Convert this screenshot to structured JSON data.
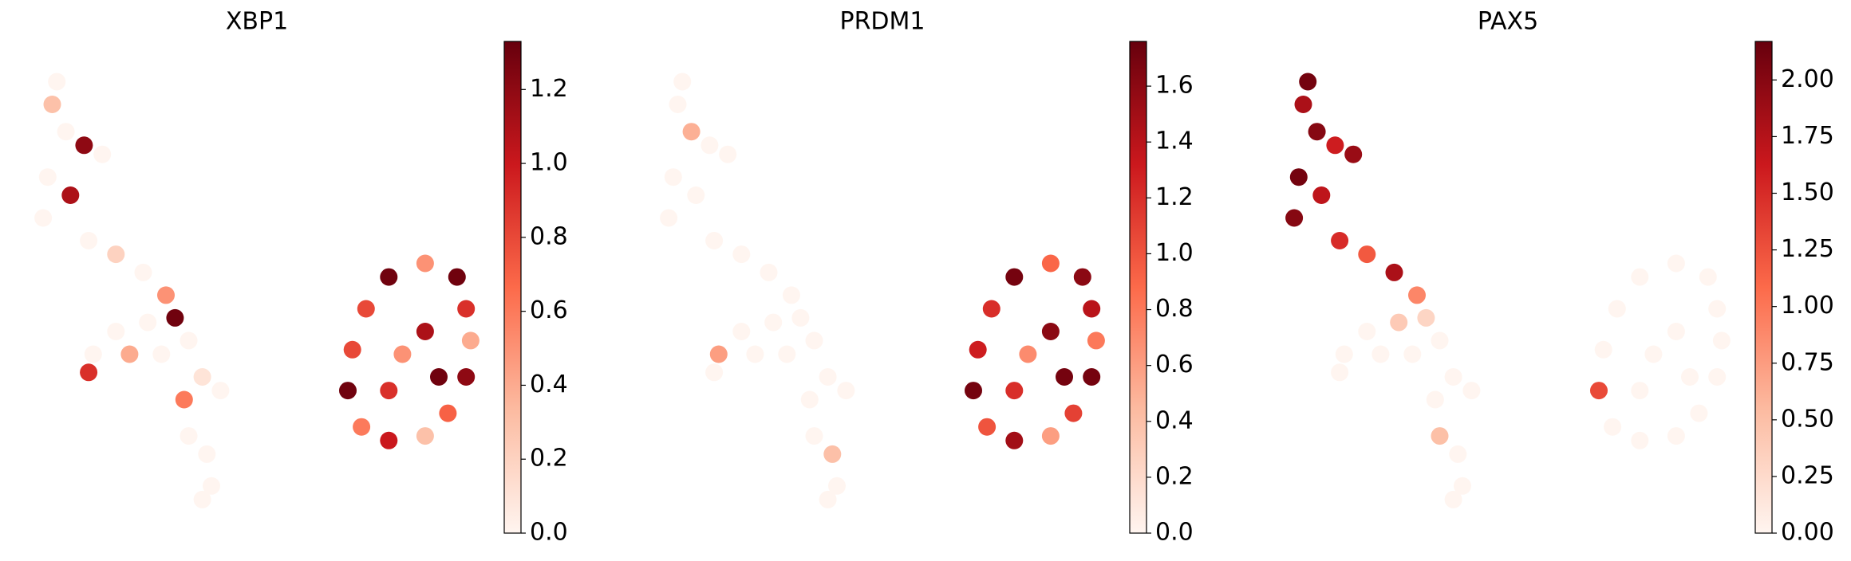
{
  "chart_data": [
    {
      "type": "scatter",
      "title": "XBP1",
      "x": [
        0.6,
        0.5,
        0.8,
        1.2,
        1.6,
        0.4,
        0.3,
        0.9,
        1.3,
        1.9,
        2.5,
        3.0,
        3.2,
        2.6,
        1.9,
        1.4,
        1.3,
        2.2,
        2.9,
        3.5,
        3.8,
        4.2,
        3.4,
        3.5,
        3.9,
        4.0,
        3.8,
        7.4,
        7.9,
        8.7,
        9.4,
        9.6,
        9.7,
        9.6,
        9.2,
        8.7,
        7.9,
        7.3,
        7.0,
        7.1,
        8.2,
        8.7,
        7.9,
        9.0
      ],
      "y": [
        9.5,
        9.0,
        8.4,
        8.1,
        7.9,
        7.4,
        6.5,
        7.0,
        6.0,
        5.7,
        5.3,
        4.8,
        4.3,
        4.2,
        4.0,
        3.5,
        3.1,
        3.5,
        3.5,
        3.8,
        3.0,
        2.7,
        2.5,
        1.7,
        1.3,
        0.6,
        0.3,
        4.5,
        5.2,
        5.5,
        5.2,
        4.5,
        3.8,
        3.0,
        2.2,
        1.7,
        1.6,
        1.9,
        2.7,
        3.6,
        3.5,
        4.0,
        2.7,
        3.0
      ],
      "values": [
        0,
        0.3,
        0,
        1.2,
        0,
        0,
        0,
        1.1,
        0,
        0.2,
        0,
        0.5,
        1.3,
        0,
        0,
        0,
        0.9,
        0.4,
        0,
        0,
        0.1,
        0,
        0.6,
        0,
        0,
        0,
        0,
        0.8,
        1.3,
        0.5,
        1.3,
        0.9,
        0.4,
        1.2,
        0.7,
        0.3,
        1.0,
        0.6,
        1.3,
        0.8,
        0.5,
        1.1,
        0.9,
        1.3
      ],
      "xlim": [
        0,
        10
      ],
      "ylim": [
        0,
        10
      ],
      "clim": [
        0,
        1.33
      ],
      "cticks": [
        {
          "value": 0,
          "label": "0.0"
        },
        {
          "value": 0.2,
          "label": "0.2"
        },
        {
          "value": 0.4,
          "label": "0.4"
        },
        {
          "value": 0.6,
          "label": "0.6"
        },
        {
          "value": 0.8,
          "label": "0.8"
        },
        {
          "value": 1,
          "label": "1.0"
        },
        {
          "value": 1.2,
          "label": "1.2"
        }
      ],
      "cmap": [
        "#fff5f0",
        "#fcbba1",
        "#fc6a4a",
        "#cb181d",
        "#67000d"
      ]
    },
    {
      "type": "scatter",
      "title": "PRDM1",
      "x": [
        0.6,
        0.5,
        0.8,
        1.2,
        1.6,
        0.4,
        0.3,
        0.9,
        1.3,
        1.9,
        2.5,
        3.0,
        3.2,
        2.6,
        1.9,
        1.4,
        1.3,
        2.2,
        2.9,
        3.5,
        3.8,
        4.2,
        3.4,
        3.5,
        3.9,
        4.0,
        3.8,
        7.4,
        7.9,
        8.7,
        9.4,
        9.6,
        9.7,
        9.6,
        9.2,
        8.7,
        7.9,
        7.3,
        7.0,
        7.1,
        8.2,
        8.7,
        7.9,
        9.0
      ],
      "y": [
        9.5,
        9.0,
        8.4,
        8.1,
        7.9,
        7.4,
        6.5,
        7.0,
        6.0,
        5.7,
        5.3,
        4.8,
        4.3,
        4.2,
        4.0,
        3.5,
        3.1,
        3.5,
        3.5,
        3.8,
        3.0,
        2.7,
        2.5,
        1.7,
        1.3,
        0.6,
        0.3,
        4.5,
        5.2,
        5.5,
        5.2,
        4.5,
        3.8,
        3.0,
        2.2,
        1.7,
        1.6,
        1.9,
        2.7,
        3.6,
        3.5,
        4.0,
        2.7,
        3.0
      ],
      "values": [
        0,
        0,
        0.5,
        0,
        0,
        0,
        0,
        0,
        0,
        0,
        0,
        0,
        0,
        0,
        0,
        0.6,
        0,
        0,
        0,
        0,
        0,
        0,
        0,
        0,
        0.4,
        0,
        0,
        1.2,
        1.7,
        0.9,
        1.6,
        1.4,
        0.8,
        1.7,
        1.1,
        0.6,
        1.5,
        1.0,
        1.7,
        1.3,
        0.7,
        1.6,
        1.2,
        1.7
      ],
      "xlim": [
        0,
        10
      ],
      "ylim": [
        0,
        10
      ],
      "clim": [
        0,
        1.76
      ],
      "cticks": [
        {
          "value": 0,
          "label": "0.0"
        },
        {
          "value": 0.2,
          "label": "0.2"
        },
        {
          "value": 0.4,
          "label": "0.4"
        },
        {
          "value": 0.6,
          "label": "0.6"
        },
        {
          "value": 0.8,
          "label": "0.8"
        },
        {
          "value": 1,
          "label": "1.0"
        },
        {
          "value": 1.2,
          "label": "1.2"
        },
        {
          "value": 1.4,
          "label": "1.4"
        },
        {
          "value": 1.6,
          "label": "1.6"
        }
      ],
      "cmap": [
        "#fff5f0",
        "#fcbba1",
        "#fc6a4a",
        "#cb181d",
        "#67000d"
      ]
    },
    {
      "type": "scatter",
      "title": "PAX5",
      "x": [
        0.6,
        0.5,
        0.8,
        1.2,
        1.6,
        0.4,
        0.3,
        0.9,
        1.3,
        1.9,
        2.5,
        3.0,
        3.2,
        2.6,
        1.9,
        1.4,
        1.3,
        2.2,
        2.9,
        3.5,
        3.8,
        4.2,
        3.4,
        3.5,
        3.9,
        4.0,
        3.8,
        7.4,
        7.9,
        8.7,
        9.4,
        9.6,
        9.7,
        9.6,
        9.2,
        8.7,
        7.9,
        7.3,
        7.0,
        7.1,
        8.2,
        8.7,
        7.9,
        9.0
      ],
      "y": [
        9.5,
        9.0,
        8.4,
        8.1,
        7.9,
        7.4,
        6.5,
        7.0,
        6.0,
        5.7,
        5.3,
        4.8,
        4.3,
        4.2,
        4.0,
        3.5,
        3.1,
        3.5,
        3.5,
        3.8,
        3.0,
        2.7,
        2.5,
        1.7,
        1.3,
        0.6,
        0.3,
        4.5,
        5.2,
        5.5,
        5.2,
        4.5,
        3.8,
        3.0,
        2.2,
        1.7,
        1.6,
        1.9,
        2.7,
        3.6,
        3.5,
        4.0,
        2.7,
        3.0
      ],
      "values": [
        2.1,
        1.8,
        2.0,
        1.6,
        1.9,
        2.1,
        2.0,
        1.7,
        1.5,
        1.2,
        1.8,
        0.9,
        0.3,
        0.4,
        0,
        0,
        0,
        0,
        0,
        0,
        0,
        0,
        0,
        0.5,
        0,
        0,
        0,
        0,
        0,
        0,
        0,
        0,
        0,
        0,
        0,
        0,
        0,
        0,
        1.3,
        0,
        0,
        0,
        0,
        0
      ],
      "xlim": [
        0,
        10
      ],
      "ylim": [
        0,
        10
      ],
      "clim": [
        0,
        2.17
      ],
      "cticks": [
        {
          "value": 0,
          "label": "0.00"
        },
        {
          "value": 0.25,
          "label": "0.25"
        },
        {
          "value": 0.5,
          "label": "0.50"
        },
        {
          "value": 0.75,
          "label": "0.75"
        },
        {
          "value": 1,
          "label": "1.00"
        },
        {
          "value": 1.25,
          "label": "1.25"
        },
        {
          "value": 1.5,
          "label": "1.50"
        },
        {
          "value": 1.75,
          "label": "1.75"
        },
        {
          "value": 2,
          "label": "2.00"
        }
      ],
      "cmap": [
        "#fff5f0",
        "#fcbba1",
        "#fc6a4a",
        "#cb181d",
        "#67000d"
      ]
    }
  ]
}
